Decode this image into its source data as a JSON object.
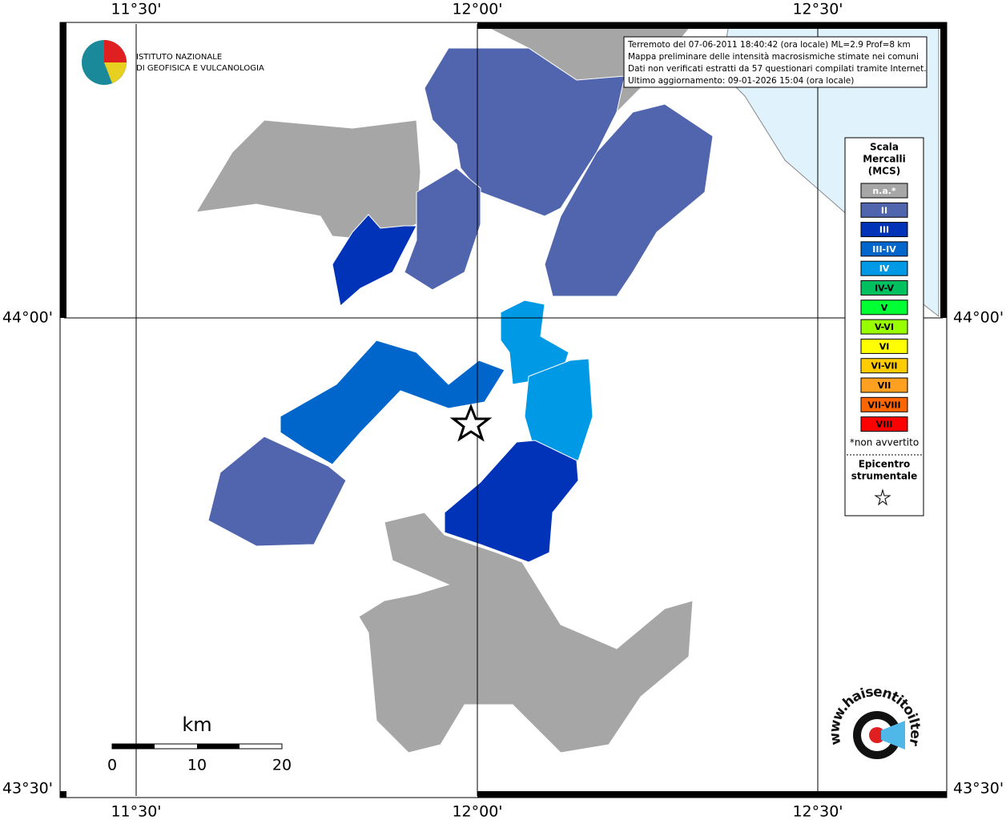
{
  "axes": {
    "top": [
      "11°30'",
      "12°00'",
      "12°30'"
    ],
    "bottom": [
      "11°30'",
      "12°00'",
      "12°30'"
    ],
    "left": [
      "44°00'",
      "43°30'"
    ],
    "right": [
      "44°00'",
      "43°30'"
    ]
  },
  "info": [
    "Terremoto del 07-06-2011 18:40:42 (ora locale) ML=2.9 Prof=8 km",
    "Mappa preliminare delle intensità macrosismiche stimate nei comuni",
    "Dati non verificati estratti da 57 questionari compilati tramite Internet.",
    "Ultimo aggiornamento: 09-01-2026 15:04 (ora locale)"
  ],
  "logo": [
    "ISTITUTO NAZIONALE",
    "DI GEOFISICA E VULCANOLOGIA"
  ],
  "legend": {
    "title": [
      "Scala",
      "Mercalli",
      "(MCS)"
    ],
    "items": [
      {
        "label": "n.a.*",
        "color": "#a6a6a6"
      },
      {
        "label": "II",
        "color": "#5065ae"
      },
      {
        "label": "III",
        "color": "#0033b8"
      },
      {
        "label": "III-IV",
        "color": "#0066cc"
      },
      {
        "label": "IV",
        "color": "#0099e6"
      },
      {
        "label": "IV-V",
        "color": "#00c060"
      },
      {
        "label": "V",
        "color": "#00ff33"
      },
      {
        "label": "V-VI",
        "color": "#99ff00"
      },
      {
        "label": "VI",
        "color": "#ffff00"
      },
      {
        "label": "VI-VII",
        "color": "#ffcc00"
      },
      {
        "label": "VII",
        "color": "#ffa020"
      },
      {
        "label": "VII-VIII",
        "color": "#ff6600"
      },
      {
        "label": "VIII",
        "color": "#ff0000"
      }
    ],
    "note": "*non avvertito",
    "epicenter": [
      "Epicentro",
      "strumentale"
    ]
  },
  "scale": {
    "unit": "km",
    "labels": [
      "0",
      "10",
      "20"
    ]
  },
  "badge": "www.haisentitoilterremoto.it"
}
